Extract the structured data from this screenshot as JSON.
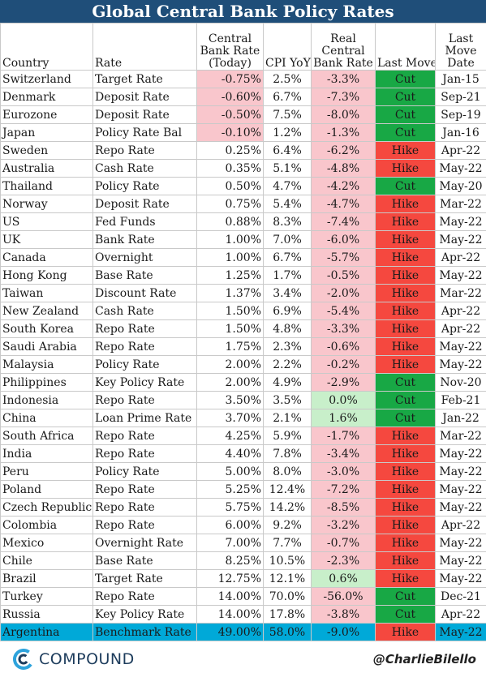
{
  "chart_data": {
    "type": "table",
    "title": "Global Central Bank Policy Rates",
    "columns": [
      "Country",
      "Rate",
      "Central Bank Rate (Today)",
      "CPI YoY",
      "Real Central Bank Rate",
      "Last Move",
      "Last Move Date"
    ],
    "rows": [
      [
        "Switzerland",
        "Target Rate",
        "-0.75%",
        "2.5%",
        "-3.3%",
        "Cut",
        "Jan-15"
      ],
      [
        "Denmark",
        "Deposit Rate",
        "-0.60%",
        "6.7%",
        "-7.3%",
        "Cut",
        "Sep-21"
      ],
      [
        "Eurozone",
        "Deposit Rate",
        "-0.50%",
        "7.5%",
        "-8.0%",
        "Cut",
        "Sep-19"
      ],
      [
        "Japan",
        "Policy Rate Bal",
        "-0.10%",
        "1.2%",
        "-1.3%",
        "Cut",
        "Jan-16"
      ],
      [
        "Sweden",
        "Repo Rate",
        "0.25%",
        "6.4%",
        "-6.2%",
        "Hike",
        "Apr-22"
      ],
      [
        "Australia",
        "Cash Rate",
        "0.35%",
        "5.1%",
        "-4.8%",
        "Hike",
        "May-22"
      ],
      [
        "Thailand",
        "Policy Rate",
        "0.50%",
        "4.7%",
        "-4.2%",
        "Cut",
        "May-20"
      ],
      [
        "Norway",
        "Deposit Rate",
        "0.75%",
        "5.4%",
        "-4.7%",
        "Hike",
        "Mar-22"
      ],
      [
        "US",
        "Fed Funds",
        "0.88%",
        "8.3%",
        "-7.4%",
        "Hike",
        "May-22"
      ],
      [
        "UK",
        "Bank Rate",
        "1.00%",
        "7.0%",
        "-6.0%",
        "Hike",
        "May-22"
      ],
      [
        "Canada",
        "Overnight",
        "1.00%",
        "6.7%",
        "-5.7%",
        "Hike",
        "Apr-22"
      ],
      [
        "Hong Kong",
        "Base Rate",
        "1.25%",
        "1.7%",
        "-0.5%",
        "Hike",
        "May-22"
      ],
      [
        "Taiwan",
        "Discount Rate",
        "1.37%",
        "3.4%",
        "-2.0%",
        "Hike",
        "Mar-22"
      ],
      [
        "New Zealand",
        "Cash Rate",
        "1.50%",
        "6.9%",
        "-5.4%",
        "Hike",
        "Apr-22"
      ],
      [
        "South Korea",
        "Repo Rate",
        "1.50%",
        "4.8%",
        "-3.3%",
        "Hike",
        "Apr-22"
      ],
      [
        "Saudi Arabia",
        "Repo Rate",
        "1.75%",
        "2.3%",
        "-0.6%",
        "Hike",
        "May-22"
      ],
      [
        "Malaysia",
        "Policy Rate",
        "2.00%",
        "2.2%",
        "-0.2%",
        "Hike",
        "May-22"
      ],
      [
        "Philippines",
        "Key Policy Rate",
        "2.00%",
        "4.9%",
        "-2.9%",
        "Cut",
        "Nov-20"
      ],
      [
        "Indonesia",
        "Repo Rate",
        "3.50%",
        "3.5%",
        "0.0%",
        "Cut",
        "Feb-21"
      ],
      [
        "China",
        "Loan Prime Rate",
        "3.70%",
        "2.1%",
        "1.6%",
        "Cut",
        "Jan-22"
      ],
      [
        "South Africa",
        "Repo Rate",
        "4.25%",
        "5.9%",
        "-1.7%",
        "Hike",
        "Mar-22"
      ],
      [
        "India",
        "Repo Rate",
        "4.40%",
        "7.8%",
        "-3.4%",
        "Hike",
        "May-22"
      ],
      [
        "Peru",
        "Policy Rate",
        "5.00%",
        "8.0%",
        "-3.0%",
        "Hike",
        "May-22"
      ],
      [
        "Poland",
        "Repo Rate",
        "5.25%",
        "12.4%",
        "-7.2%",
        "Hike",
        "May-22"
      ],
      [
        "Czech Republic",
        "Repo Rate",
        "5.75%",
        "14.2%",
        "-8.5%",
        "Hike",
        "May-22"
      ],
      [
        "Colombia",
        "Repo Rate",
        "6.00%",
        "9.2%",
        "-3.2%",
        "Hike",
        "Apr-22"
      ],
      [
        "Mexico",
        "Overnight Rate",
        "7.00%",
        "7.7%",
        "-0.7%",
        "Hike",
        "May-22"
      ],
      [
        "Chile",
        "Base Rate",
        "8.25%",
        "10.5%",
        "-2.3%",
        "Hike",
        "May-22"
      ],
      [
        "Brazil",
        "Target Rate",
        "12.75%",
        "12.1%",
        "0.6%",
        "Hike",
        "May-22"
      ],
      [
        "Turkey",
        "Repo Rate",
        "14.00%",
        "70.0%",
        "-56.0%",
        "Cut",
        "Dec-21"
      ],
      [
        "Russia",
        "Key Policy Rate",
        "14.00%",
        "17.8%",
        "-3.8%",
        "Cut",
        "Apr-22"
      ],
      [
        "Argentina",
        "Benchmark Rate",
        "49.00%",
        "58.0%",
        "-9.0%",
        "Hike",
        "May-22"
      ]
    ],
    "highlight_row": "Argentina",
    "colors": {
      "title_bg": "#1f4e79",
      "negative_bg": "#f9c6cc",
      "negative_text": "#b10f12",
      "positive_bg": "#c8efca",
      "positive_text": "#0a7a22",
      "cut_bg": "#18a845",
      "hike_bg": "#f5483f",
      "highlight_bg": "#00a9d8"
    }
  },
  "footer": {
    "brand": "COMPOUND",
    "brand_icon": "compound-logo-icon",
    "handle": "@CharlieBilello"
  }
}
